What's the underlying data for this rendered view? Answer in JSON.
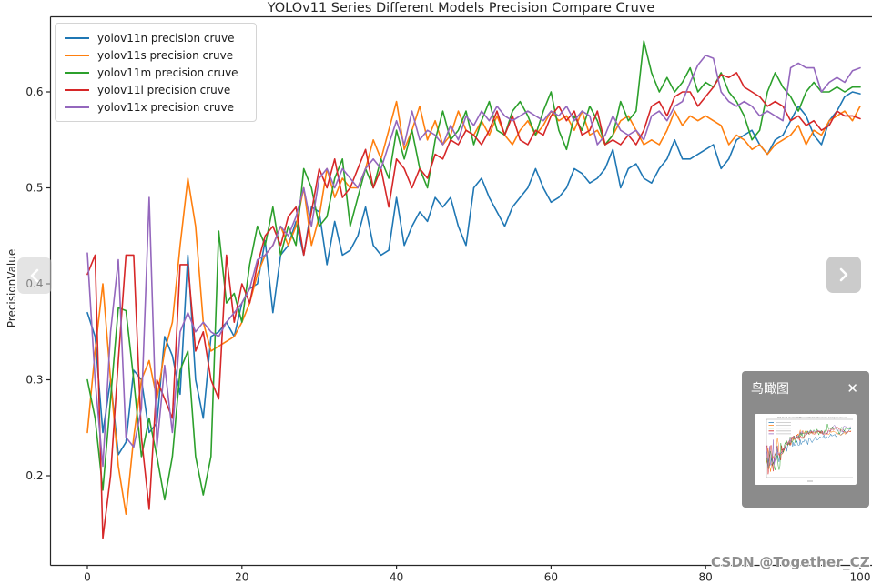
{
  "theme": {
    "background": "#ffffff",
    "axis_color": "#262626",
    "tick_label_color": "#262626",
    "overlay_gray": "#828282",
    "nav_button_gray": "#cbcbcb",
    "watermark_gray": "#8f8f8f"
  },
  "chart_data": {
    "type": "line",
    "title": "YOLOv11 Series Different Models Precision Compare Cruve",
    "xlabel": "",
    "ylabel": "PrecisionValue",
    "xticks": [
      0,
      20,
      40,
      60,
      80,
      100
    ],
    "yticks": [
      0.2,
      0.3,
      0.4,
      0.5,
      0.6
    ],
    "xlim": [
      -5,
      105
    ],
    "ylim": [
      0.105,
      0.685
    ],
    "grid": false,
    "legend_position": "upper left",
    "x": {
      "start": 0,
      "step": 1,
      "n_points": 101
    },
    "series": [
      {
        "name": "yolov11n precision cruve",
        "color": "#1f77b4",
        "values": [
          0.37,
          0.345,
          0.245,
          0.3,
          0.222,
          0.235,
          0.31,
          0.3,
          0.245,
          0.255,
          0.345,
          0.325,
          0.285,
          0.43,
          0.3,
          0.26,
          0.345,
          0.35,
          0.36,
          0.345,
          0.38,
          0.395,
          0.4,
          0.445,
          0.37,
          0.43,
          0.44,
          0.465,
          0.43,
          0.48,
          0.475,
          0.42,
          0.465,
          0.43,
          0.435,
          0.45,
          0.48,
          0.44,
          0.43,
          0.435,
          0.49,
          0.44,
          0.46,
          0.475,
          0.465,
          0.49,
          0.48,
          0.49,
          0.46,
          0.44,
          0.5,
          0.51,
          0.49,
          0.475,
          0.46,
          0.48,
          0.49,
          0.5,
          0.52,
          0.5,
          0.485,
          0.49,
          0.5,
          0.52,
          0.515,
          0.505,
          0.51,
          0.52,
          0.54,
          0.5,
          0.52,
          0.525,
          0.51,
          0.505,
          0.52,
          0.53,
          0.55,
          0.53,
          0.53,
          0.535,
          0.54,
          0.545,
          0.52,
          0.53,
          0.55,
          0.555,
          0.56,
          0.545,
          0.535,
          0.55,
          0.555,
          0.57,
          0.585,
          0.575,
          0.555,
          0.545,
          0.57,
          0.58,
          0.595,
          0.6,
          0.598
        ]
      },
      {
        "name": "yolov11s precision cruve",
        "color": "#ff7f0e",
        "values": [
          0.245,
          0.33,
          0.4,
          0.3,
          0.21,
          0.16,
          0.24,
          0.3,
          0.32,
          0.28,
          0.33,
          0.36,
          0.44,
          0.51,
          0.46,
          0.36,
          0.33,
          0.335,
          0.34,
          0.345,
          0.36,
          0.38,
          0.41,
          0.43,
          0.44,
          0.46,
          0.44,
          0.46,
          0.5,
          0.44,
          0.47,
          0.52,
          0.49,
          0.51,
          0.5,
          0.5,
          0.52,
          0.55,
          0.53,
          0.56,
          0.59,
          0.54,
          0.56,
          0.585,
          0.55,
          0.57,
          0.545,
          0.555,
          0.58,
          0.56,
          0.555,
          0.57,
          0.555,
          0.575,
          0.555,
          0.545,
          0.56,
          0.57,
          0.555,
          0.565,
          0.58,
          0.57,
          0.575,
          0.56,
          0.58,
          0.555,
          0.56,
          0.545,
          0.555,
          0.57,
          0.575,
          0.56,
          0.545,
          0.55,
          0.545,
          0.56,
          0.58,
          0.565,
          0.575,
          0.57,
          0.575,
          0.57,
          0.565,
          0.545,
          0.555,
          0.55,
          0.54,
          0.545,
          0.535,
          0.545,
          0.55,
          0.555,
          0.565,
          0.545,
          0.56,
          0.555,
          0.57,
          0.575,
          0.58,
          0.57,
          0.585
        ]
      },
      {
        "name": "yolov11m precision cruve",
        "color": "#2ca02c",
        "values": [
          0.3,
          0.26,
          0.185,
          0.28,
          0.375,
          0.372,
          0.3,
          0.22,
          0.26,
          0.22,
          0.175,
          0.22,
          0.31,
          0.33,
          0.22,
          0.18,
          0.22,
          0.455,
          0.38,
          0.39,
          0.36,
          0.42,
          0.46,
          0.44,
          0.48,
          0.43,
          0.46,
          0.44,
          0.52,
          0.5,
          0.46,
          0.47,
          0.51,
          0.53,
          0.46,
          0.49,
          0.52,
          0.5,
          0.53,
          0.51,
          0.56,
          0.53,
          0.56,
          0.52,
          0.5,
          0.55,
          0.58,
          0.55,
          0.56,
          0.58,
          0.545,
          0.57,
          0.59,
          0.56,
          0.555,
          0.58,
          0.59,
          0.575,
          0.555,
          0.58,
          0.6,
          0.56,
          0.54,
          0.575,
          0.56,
          0.585,
          0.57,
          0.545,
          0.555,
          0.59,
          0.57,
          0.58,
          0.653,
          0.62,
          0.6,
          0.615,
          0.6,
          0.61,
          0.625,
          0.6,
          0.61,
          0.605,
          0.62,
          0.6,
          0.59,
          0.575,
          0.55,
          0.56,
          0.6,
          0.62,
          0.605,
          0.595,
          0.58,
          0.6,
          0.61,
          0.6,
          0.6,
          0.605,
          0.6,
          0.605,
          0.605
        ]
      },
      {
        "name": "yolov11l precision cruve",
        "color": "#d62728",
        "values": [
          0.41,
          0.43,
          0.135,
          0.2,
          0.32,
          0.43,
          0.43,
          0.24,
          0.165,
          0.3,
          0.28,
          0.26,
          0.42,
          0.42,
          0.33,
          0.35,
          0.3,
          0.28,
          0.43,
          0.36,
          0.4,
          0.38,
          0.42,
          0.45,
          0.46,
          0.44,
          0.47,
          0.48,
          0.43,
          0.475,
          0.52,
          0.5,
          0.53,
          0.49,
          0.5,
          0.52,
          0.54,
          0.5,
          0.52,
          0.48,
          0.53,
          0.52,
          0.5,
          0.52,
          0.51,
          0.535,
          0.53,
          0.55,
          0.545,
          0.56,
          0.555,
          0.545,
          0.56,
          0.58,
          0.555,
          0.575,
          0.55,
          0.545,
          0.56,
          0.555,
          0.575,
          0.585,
          0.57,
          0.58,
          0.555,
          0.56,
          0.58,
          0.545,
          0.55,
          0.545,
          0.555,
          0.545,
          0.56,
          0.585,
          0.59,
          0.575,
          0.595,
          0.6,
          0.6,
          0.585,
          0.595,
          0.605,
          0.618,
          0.615,
          0.62,
          0.605,
          0.6,
          0.595,
          0.585,
          0.59,
          0.585,
          0.57,
          0.575,
          0.565,
          0.57,
          0.56,
          0.565,
          0.58,
          0.575,
          0.575,
          0.572
        ]
      },
      {
        "name": "yolov11x precision cruve",
        "color": "#9467bd",
        "values": [
          0.432,
          0.3,
          0.21,
          0.35,
          0.425,
          0.24,
          0.23,
          0.27,
          0.49,
          0.23,
          0.315,
          0.245,
          0.35,
          0.37,
          0.35,
          0.36,
          0.35,
          0.345,
          0.36,
          0.37,
          0.38,
          0.395,
          0.425,
          0.43,
          0.44,
          0.46,
          0.45,
          0.47,
          0.5,
          0.46,
          0.51,
          0.52,
          0.5,
          0.52,
          0.51,
          0.5,
          0.52,
          0.53,
          0.52,
          0.545,
          0.57,
          0.545,
          0.58,
          0.55,
          0.56,
          0.555,
          0.545,
          0.565,
          0.55,
          0.575,
          0.565,
          0.58,
          0.57,
          0.585,
          0.575,
          0.57,
          0.575,
          0.58,
          0.575,
          0.57,
          0.58,
          0.575,
          0.585,
          0.57,
          0.58,
          0.575,
          0.545,
          0.555,
          0.575,
          0.56,
          0.555,
          0.56,
          0.55,
          0.575,
          0.58,
          0.57,
          0.585,
          0.59,
          0.61,
          0.628,
          0.638,
          0.635,
          0.6,
          0.59,
          0.585,
          0.59,
          0.585,
          0.575,
          0.58,
          0.575,
          0.57,
          0.625,
          0.63,
          0.625,
          0.625,
          0.6,
          0.61,
          0.615,
          0.61,
          0.622,
          0.625
        ]
      }
    ]
  },
  "overlay": {
    "title": "鸟瞰图",
    "close_icon": "✕"
  },
  "watermark": {
    "text": "CSDN @Together_CZ"
  },
  "carousel": {
    "prev_icon": "chevron-left",
    "next_icon": "chevron-right"
  }
}
